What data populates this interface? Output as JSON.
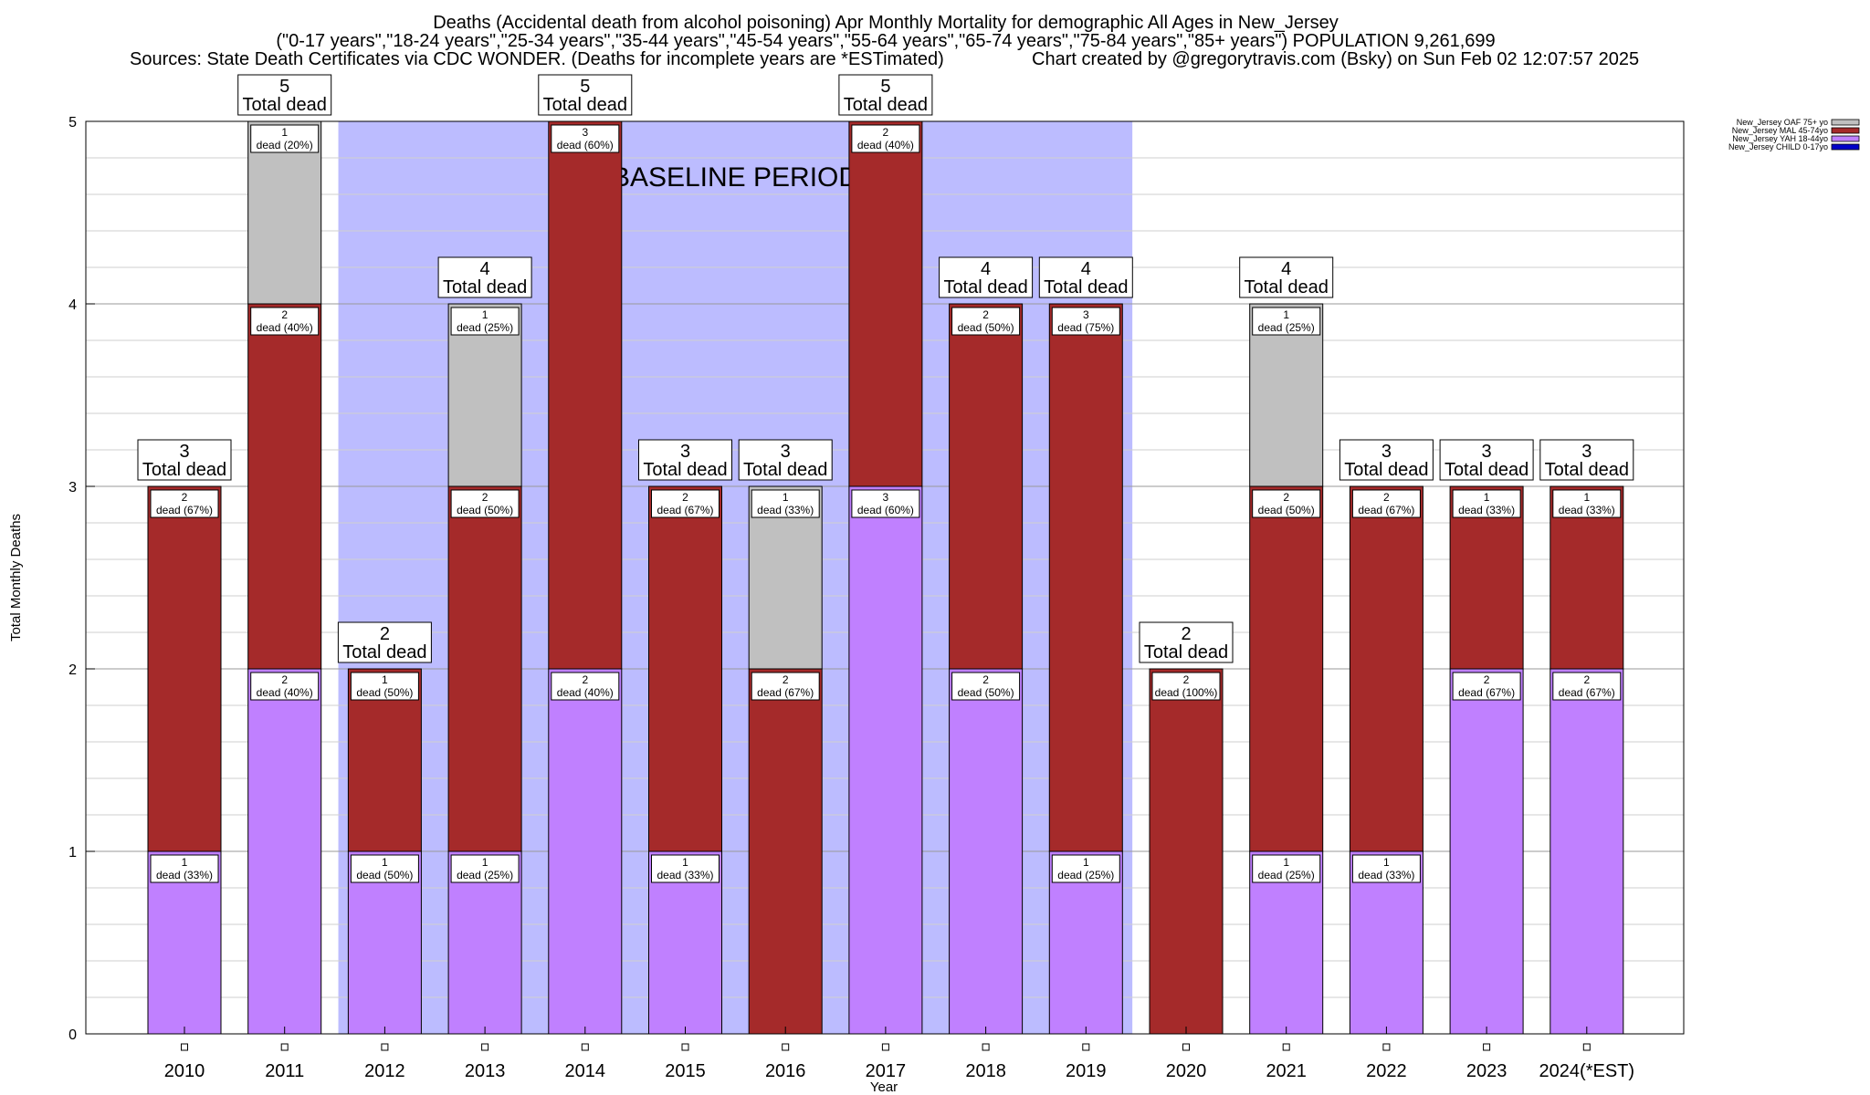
{
  "header": {
    "line1": "Deaths (Accidental death from alcohol poisoning) Apr Monthly Mortality for demographic All Ages in New_Jersey",
    "line2": "(\"0-17 years\",\"18-24 years\",\"25-34 years\",\"35-44 years\",\"45-54 years\",\"55-64 years\",\"65-74 years\",\"75-84 years\",\"85+ years\") POPULATION 9,261,699",
    "line3_left": "Sources: State Death Certificates via CDC WONDER. (Deaths for incomplete years are *ESTimated)",
    "line3_right": "Chart created by @gregorytravis.com (Bsky) on Sun Feb 02 12:07:57 2025"
  },
  "chart_data": {
    "type": "bar",
    "stacked": true,
    "ylabel": "Total Monthly Deaths",
    "xlabel": "Year",
    "ylim": [
      0,
      5
    ],
    "yticks": [
      "0",
      "1",
      "2",
      "3",
      "4",
      "5"
    ],
    "categories": [
      "2010",
      "2011",
      "2012",
      "2013",
      "2014",
      "2015",
      "2016",
      "2017",
      "2018",
      "2019",
      "2020",
      "2021",
      "2022",
      "2023",
      "2024(*EST)"
    ],
    "baseline_period": {
      "label": "BASELINE PERIOD",
      "from": "2012",
      "to": "2019"
    },
    "total_label": "Total dead",
    "series": [
      {
        "name": "New_Jersey CHILD 0-17yo",
        "color": "#0000c8",
        "values": [
          0,
          0,
          0,
          0,
          0,
          0,
          0,
          0,
          0,
          0,
          0,
          0,
          0,
          0,
          0
        ],
        "labels": [
          "",
          "",
          "",
          "",
          "",
          "",
          "",
          "",
          "",
          "",
          "",
          "",
          "",
          "",
          ""
        ]
      },
      {
        "name": "New_Jersey YAH 18-44yo",
        "color": "#c080ff",
        "values": [
          1,
          2,
          1,
          1,
          2,
          1,
          0,
          3,
          2,
          1,
          0,
          1,
          1,
          2,
          2
        ],
        "labels": [
          "dead (33%)",
          "dead (40%)",
          "dead (50%)",
          "dead (25%)",
          "dead (40%)",
          "dead (33%)",
          "",
          "dead (60%)",
          "dead (50%)",
          "dead (25%)",
          "",
          "dead (25%)",
          "dead (33%)",
          "dead (67%)",
          "dead (67%)"
        ]
      },
      {
        "name": "New_Jersey MAL 45-74yo",
        "color": "#a52a2a",
        "values": [
          2,
          2,
          1,
          2,
          3,
          2,
          2,
          2,
          2,
          3,
          2,
          2,
          2,
          1,
          1
        ],
        "labels": [
          "dead (67%)",
          "dead (40%)",
          "dead (50%)",
          "dead (50%)",
          "dead (60%)",
          "dead (67%)",
          "dead (67%)",
          "dead (40%)",
          "dead (50%)",
          "dead (75%)",
          "dead (100%)",
          "dead (50%)",
          "dead (67%)",
          "dead (33%)",
          "dead (33%)"
        ]
      },
      {
        "name": "New_Jersey OAF 75+ yo",
        "color": "#c0c0c0",
        "values": [
          0,
          1,
          0,
          1,
          0,
          0,
          1,
          0,
          0,
          0,
          0,
          1,
          0,
          0,
          0
        ],
        "labels": [
          "",
          "dead (20%)",
          "",
          "dead (25%)",
          "",
          "",
          "dead (33%)",
          "",
          "",
          "",
          "",
          "dead (25%)",
          "",
          "",
          ""
        ]
      }
    ],
    "totals": [
      3,
      5,
      2,
      4,
      5,
      3,
      3,
      5,
      4,
      4,
      2,
      4,
      3,
      3,
      3
    ]
  }
}
